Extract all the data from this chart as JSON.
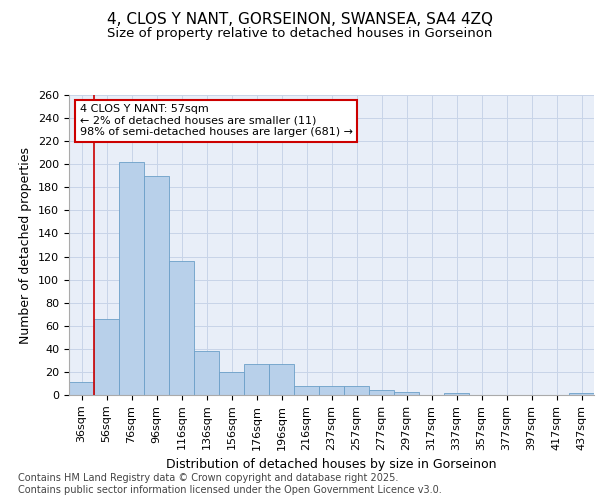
{
  "title": "4, CLOS Y NANT, GORSEINON, SWANSEA, SA4 4ZQ",
  "subtitle": "Size of property relative to detached houses in Gorseinon",
  "xlabel": "Distribution of detached houses by size in Gorseinon",
  "ylabel": "Number of detached properties",
  "categories": [
    "36sqm",
    "56sqm",
    "76sqm",
    "96sqm",
    "116sqm",
    "136sqm",
    "156sqm",
    "176sqm",
    "196sqm",
    "216sqm",
    "237sqm",
    "257sqm",
    "277sqm",
    "297sqm",
    "317sqm",
    "337sqm",
    "357sqm",
    "377sqm",
    "397sqm",
    "417sqm",
    "437sqm"
  ],
  "values": [
    11,
    66,
    202,
    190,
    116,
    38,
    20,
    27,
    27,
    8,
    8,
    8,
    4,
    3,
    0,
    2,
    0,
    0,
    0,
    0,
    2
  ],
  "bar_color": "#b8d0ea",
  "bar_edge_color": "#6b9fc8",
  "grid_color": "#c8d4e8",
  "bg_color": "#e8eef8",
  "annotation_box_text": "4 CLOS Y NANT: 57sqm\n← 2% of detached houses are smaller (11)\n98% of semi-detached houses are larger (681) →",
  "annotation_box_color": "#cc0000",
  "vline_xidx": 1,
  "vline_color": "#cc0000",
  "ylim": [
    0,
    260
  ],
  "yticks": [
    0,
    20,
    40,
    60,
    80,
    100,
    120,
    140,
    160,
    180,
    200,
    220,
    240,
    260
  ],
  "footer_text": "Contains HM Land Registry data © Crown copyright and database right 2025.\nContains public sector information licensed under the Open Government Licence v3.0.",
  "title_fontsize": 11,
  "subtitle_fontsize": 9.5,
  "axis_label_fontsize": 9,
  "tick_fontsize": 8,
  "annotation_fontsize": 8,
  "footer_fontsize": 7
}
